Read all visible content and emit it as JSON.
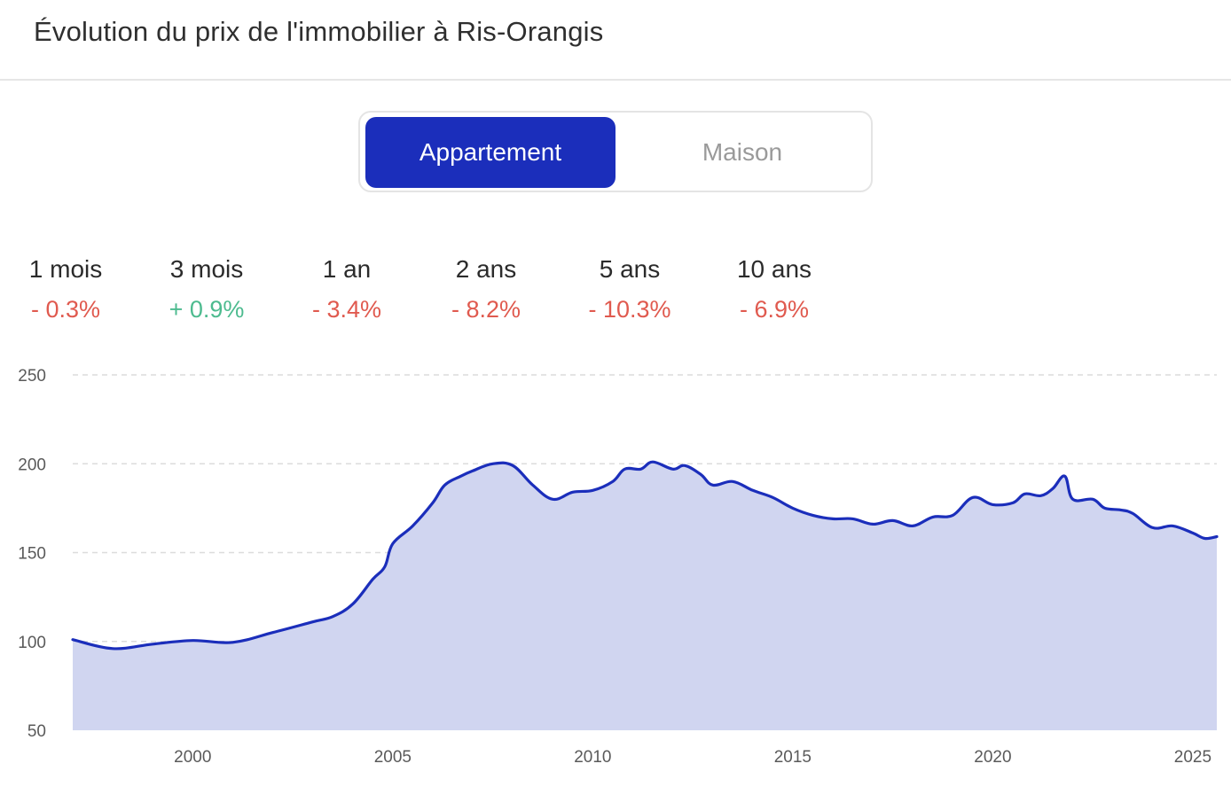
{
  "title": "Évolution du prix de l'immobilier à Ris-Orangis",
  "toggle": {
    "options": [
      "Appartement",
      "Maison"
    ],
    "selected": "Appartement"
  },
  "colors": {
    "accent": "#1b2ebb",
    "negative": "#e05a4f",
    "positive": "#4dbb8f",
    "area_fill": "#d0d5f0",
    "line": "#1b2ebb"
  },
  "stats": [
    {
      "label": "1 mois",
      "value": "- 0.3%",
      "trend": "negative"
    },
    {
      "label": "3 mois",
      "value": "+ 0.9%",
      "trend": "positive"
    },
    {
      "label": "1 an",
      "value": "- 3.4%",
      "trend": "negative"
    },
    {
      "label": "2 ans",
      "value": "- 8.2%",
      "trend": "negative"
    },
    {
      "label": "5 ans",
      "value": "- 10.3%",
      "trend": "negative"
    },
    {
      "label": "10 ans",
      "value": "- 6.9%",
      "trend": "negative"
    }
  ],
  "chart_data": {
    "type": "area",
    "title": "",
    "xlabel": "",
    "ylabel": "",
    "xlim": [
      1997,
      2025.6
    ],
    "ylim": [
      50,
      250
    ],
    "x_ticks": [
      2000,
      2005,
      2010,
      2015,
      2020,
      2025
    ],
    "y_ticks": [
      50,
      100,
      150,
      200,
      250
    ],
    "grid": true,
    "series": [
      {
        "points": [
          [
            1997.0,
            101
          ],
          [
            1998.0,
            96
          ],
          [
            1999.0,
            98.5
          ],
          [
            2000.0,
            100.5
          ],
          [
            2001.0,
            99.5
          ],
          [
            2002.0,
            105
          ],
          [
            2003.0,
            111
          ],
          [
            2003.5,
            114
          ],
          [
            2004.0,
            121
          ],
          [
            2004.5,
            135
          ],
          [
            2004.8,
            142
          ],
          [
            2005.0,
            155
          ],
          [
            2005.5,
            165
          ],
          [
            2006.0,
            178
          ],
          [
            2006.3,
            188
          ],
          [
            2006.7,
            193
          ],
          [
            2007.0,
            196
          ],
          [
            2007.5,
            200
          ],
          [
            2008.0,
            199
          ],
          [
            2008.5,
            188
          ],
          [
            2009.0,
            180
          ],
          [
            2009.5,
            184
          ],
          [
            2010.0,
            185
          ],
          [
            2010.5,
            190
          ],
          [
            2010.8,
            197
          ],
          [
            2011.2,
            197
          ],
          [
            2011.5,
            201
          ],
          [
            2012.0,
            197
          ],
          [
            2012.3,
            199
          ],
          [
            2012.7,
            194
          ],
          [
            2013.0,
            188
          ],
          [
            2013.5,
            190
          ],
          [
            2014.0,
            185
          ],
          [
            2014.5,
            181
          ],
          [
            2015.0,
            175
          ],
          [
            2015.5,
            171
          ],
          [
            2016.0,
            169
          ],
          [
            2016.5,
            169
          ],
          [
            2017.0,
            166
          ],
          [
            2017.5,
            168
          ],
          [
            2018.0,
            165
          ],
          [
            2018.5,
            170
          ],
          [
            2019.0,
            171
          ],
          [
            2019.5,
            181
          ],
          [
            2020.0,
            177
          ],
          [
            2020.5,
            178
          ],
          [
            2020.8,
            183
          ],
          [
            2021.2,
            182
          ],
          [
            2021.5,
            186
          ],
          [
            2021.8,
            193
          ],
          [
            2022.0,
            180
          ],
          [
            2022.5,
            180
          ],
          [
            2022.8,
            175
          ],
          [
            2023.2,
            174
          ],
          [
            2023.5,
            172
          ],
          [
            2024.0,
            164
          ],
          [
            2024.5,
            165
          ],
          [
            2025.0,
            161
          ],
          [
            2025.3,
            158
          ],
          [
            2025.6,
            159
          ]
        ]
      }
    ]
  }
}
